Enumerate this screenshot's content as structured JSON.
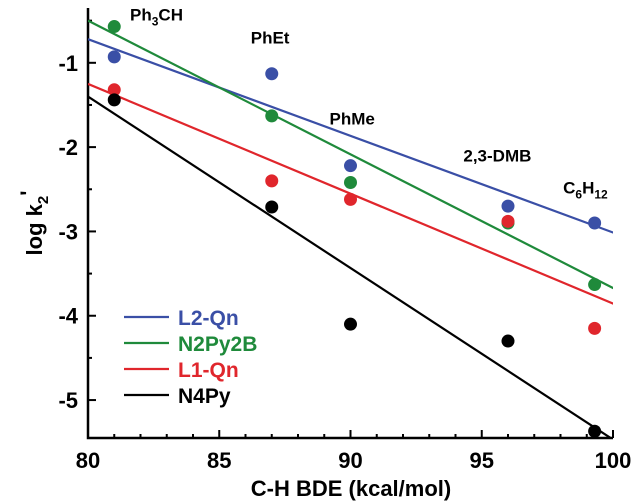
{
  "chart_data": {
    "type": "scatter",
    "xlabel": "C-H BDE (kcal/mol)",
    "ylabel_main": "log k",
    "ylabel_sub": "2",
    "ylabel_prime": "'",
    "xlim": [
      80,
      100
    ],
    "ylim": [
      -5.45,
      -0.35
    ],
    "x_ticks": [
      80,
      85,
      90,
      95,
      100
    ],
    "y_ticks": [
      -1,
      -2,
      -3,
      -4,
      -5
    ],
    "legend_position": "bottom-left",
    "grid": false,
    "series": [
      {
        "name": "L2-Qn",
        "color": "#3a4fa6",
        "points": [
          [
            81,
            -0.93
          ],
          [
            87,
            -1.13
          ],
          [
            90,
            -2.22
          ],
          [
            96,
            -2.7
          ],
          [
            99.3,
            -2.9
          ]
        ],
        "fit": [
          [
            80,
            -0.72
          ],
          [
            100.5,
            -3.07
          ]
        ]
      },
      {
        "name": "N2Py2B",
        "color": "#1f8a3b",
        "points": [
          [
            81,
            -0.57
          ],
          [
            87,
            -1.63
          ],
          [
            90,
            -2.42
          ],
          [
            96,
            -2.9
          ],
          [
            99.3,
            -3.63
          ]
        ],
        "fit": [
          [
            80,
            -0.5
          ],
          [
            100.5,
            -3.75
          ]
        ]
      },
      {
        "name": "L1-Qn",
        "color": "#e0262c",
        "points": [
          [
            81,
            -1.32
          ],
          [
            87,
            -2.4
          ],
          [
            90,
            -2.62
          ],
          [
            96,
            -2.88
          ],
          [
            99.3,
            -4.15
          ]
        ],
        "fit": [
          [
            80,
            -1.25
          ],
          [
            100.5,
            -3.92
          ]
        ]
      },
      {
        "name": "N4Py",
        "color": "#000000",
        "points": [
          [
            81,
            -1.44
          ],
          [
            87,
            -2.71
          ],
          [
            90,
            -4.1
          ],
          [
            96,
            -4.3
          ],
          [
            99.3,
            -5.37
          ]
        ],
        "fit": [
          [
            80,
            -1.4
          ],
          [
            100.5,
            -5.57
          ]
        ]
      }
    ],
    "annotations": [
      {
        "parts": [
          {
            "t": "Ph"
          },
          {
            "t": "3",
            "sub": true
          },
          {
            "t": "CH"
          }
        ],
        "x": 81.6,
        "y": -0.5
      },
      {
        "parts": [
          {
            "t": "PhEt"
          }
        ],
        "x": 86.2,
        "y": -0.77
      },
      {
        "parts": [
          {
            "t": "PhMe"
          }
        ],
        "x": 89.2,
        "y": -1.73
      },
      {
        "parts": [
          {
            "t": "2,3-DMB"
          }
        ],
        "x": 94.3,
        "y": -2.17
      },
      {
        "parts": [
          {
            "t": "C"
          },
          {
            "t": "6",
            "sub": true
          },
          {
            "t": "H"
          },
          {
            "t": "12",
            "sub": true
          }
        ],
        "x": 98.1,
        "y": -2.55
      }
    ]
  }
}
